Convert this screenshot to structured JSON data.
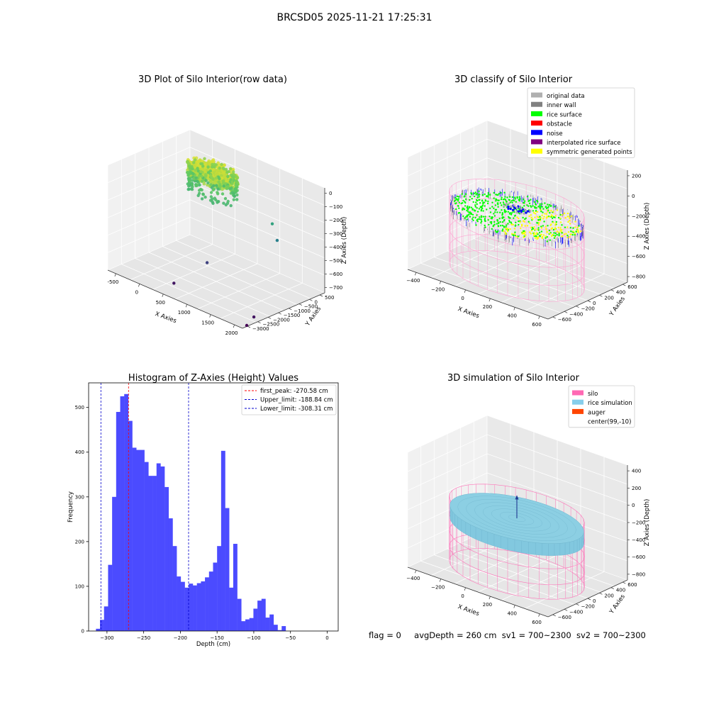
{
  "figure": {
    "title": "BRCSD05 2025-11-21 17:25:31",
    "status_line": {
      "flag": "flag = 0",
      "avg_depth": "avgDepth = 260 cm",
      "sv1": "sv1 = 700~2300",
      "sv2": "sv2 = 700~2300"
    }
  },
  "chart_data": [
    {
      "type": "scatter",
      "title": "3D Plot of Silo Interior(row data)",
      "xlabel": "X Axies",
      "ylabel": "Y Axies",
      "zlabel": "Z Axies (Depth)",
      "x_ticks": [
        "-500",
        "0",
        "500",
        "1000",
        "1500",
        "2000"
      ],
      "y_ticks": [
        "500",
        "0",
        "−500",
        "−1000",
        "−1500",
        "−2000",
        "−2500",
        "−3000"
      ],
      "z_ticks": [
        "0",
        "−100",
        "−200",
        "−300",
        "−400",
        "−500",
        "−600",
        "−700"
      ],
      "xlim": [
        -600,
        2000
      ],
      "ylim": [
        -3000,
        600
      ],
      "zlim": [
        -780,
        50
      ],
      "colormap": "viridis",
      "cluster": {
        "x_center": 100,
        "y_center": 0,
        "radius": 450,
        "z_top": -80,
        "z_bottom": -300
      },
      "outliers": [
        {
          "x": 1450,
          "y": -450,
          "z": -250
        },
        {
          "x": 1500,
          "y": -350,
          "z": -380
        },
        {
          "x": 700,
          "y": -1600,
          "z": -600
        },
        {
          "x": 2000,
          "y": -2500,
          "z": -730
        },
        {
          "x": 1950,
          "y": -2700,
          "z": -790
        },
        {
          "x": 500,
          "y": -2600,
          "z": -720
        }
      ]
    },
    {
      "type": "scatter",
      "title": "3D classify of Silo Interior",
      "xlabel": "X Axies",
      "ylabel": "Y Axies",
      "zlabel": "Z Axies (Depth)",
      "x_ticks": [
        "−400",
        "−200",
        "0",
        "200",
        "400",
        "600"
      ],
      "y_ticks": [
        "600",
        "400",
        "200",
        "0",
        "−200",
        "−400",
        "−600"
      ],
      "z_ticks": [
        "200",
        "0",
        "−200",
        "−400",
        "−600",
        "−800"
      ],
      "xlim": [
        -500,
        700
      ],
      "ylim": [
        -700,
        700
      ],
      "zlim": [
        -950,
        300
      ],
      "legend": {
        "position": "top-right",
        "entries": [
          {
            "label": "original data",
            "color": "#b0b0b0"
          },
          {
            "label": "inner wall",
            "color": "#808080"
          },
          {
            "label": "rice surface",
            "color": "#00ff00"
          },
          {
            "label": "obstacle",
            "color": "#ff0000"
          },
          {
            "label": "noise",
            "color": "#0000ff"
          },
          {
            "label": "interpolated rice surface",
            "color": "#800080"
          },
          {
            "label": "symmetric generated points",
            "color": "#ffff00"
          }
        ]
      },
      "silo": {
        "x_center": 99,
        "y_center": -10,
        "radius": 520,
        "z_top": -150,
        "z_bottom": -950
      },
      "surface_z": -280
    },
    {
      "type": "bar",
      "title": "Histogram of Z-Axies (Height) Values",
      "xlabel": "Depth (cm)",
      "ylabel": "Frequency",
      "xlim": [
        -325,
        15
      ],
      "ylim": [
        0,
        555
      ],
      "x_ticks": [
        -300,
        -250,
        -200,
        -150,
        -100,
        -50,
        0
      ],
      "x_tick_labels": [
        "−300",
        "−250",
        "−200",
        "−150",
        "−100",
        "−50",
        "0"
      ],
      "y_ticks": [
        0,
        100,
        200,
        300,
        400,
        500
      ],
      "bin_start": -315,
      "bin_width": 5.5,
      "values": [
        5,
        25,
        55,
        148,
        300,
        490,
        525,
        530,
        470,
        410,
        405,
        405,
        378,
        347,
        347,
        375,
        368,
        322,
        252,
        190,
        122,
        110,
        97,
        106,
        102,
        107,
        111,
        120,
        133,
        153,
        190,
        403,
        275,
        97,
        195,
        72,
        22,
        26,
        29,
        50,
        68,
        72,
        30,
        37,
        14,
        2,
        11
      ],
      "bar_color": "#4b4bff",
      "legend": {
        "position": "top-right",
        "entries": [
          {
            "label": "first_peak: -270.58 cm",
            "value": -270.58,
            "color": "#ff0000"
          },
          {
            "label": "Upper_limit: -188.84 cm",
            "value": -188.84,
            "color": "#0000cc"
          },
          {
            "label": "Lower_limit: -308.31 cm",
            "value": -308.31,
            "color": "#0000cc"
          }
        ]
      }
    },
    {
      "type": "scatter",
      "title": "3D simulation of Silo Interior",
      "xlabel": "X Axies",
      "ylabel": "Y Axies",
      "zlabel": "Z Axies (Depth)",
      "x_ticks": [
        "−400",
        "−200",
        "0",
        "200",
        "400",
        "600"
      ],
      "y_ticks": [
        "600",
        "400",
        "200",
        "0",
        "−200",
        "−400",
        "−600"
      ],
      "z_ticks": [
        "400",
        "200",
        "0",
        "−200",
        "−400",
        "−600",
        "−800"
      ],
      "xlim": [
        -500,
        700
      ],
      "ylim": [
        -700,
        700
      ],
      "zlim": [
        -950,
        480
      ],
      "legend": {
        "position": "top-right",
        "entries": [
          {
            "label": "silo",
            "color": "#ff69b4"
          },
          {
            "label": "rice simulation",
            "color": "#87ceeb"
          },
          {
            "label": "auger",
            "color": "#ff4500"
          },
          {
            "label": "center(99,-10)",
            "color": ""
          }
        ]
      },
      "silo": {
        "x_center": 99,
        "y_center": -10,
        "radius": 520,
        "z_top": -150,
        "z_bottom": -950
      },
      "surface_z": -260
    }
  ]
}
